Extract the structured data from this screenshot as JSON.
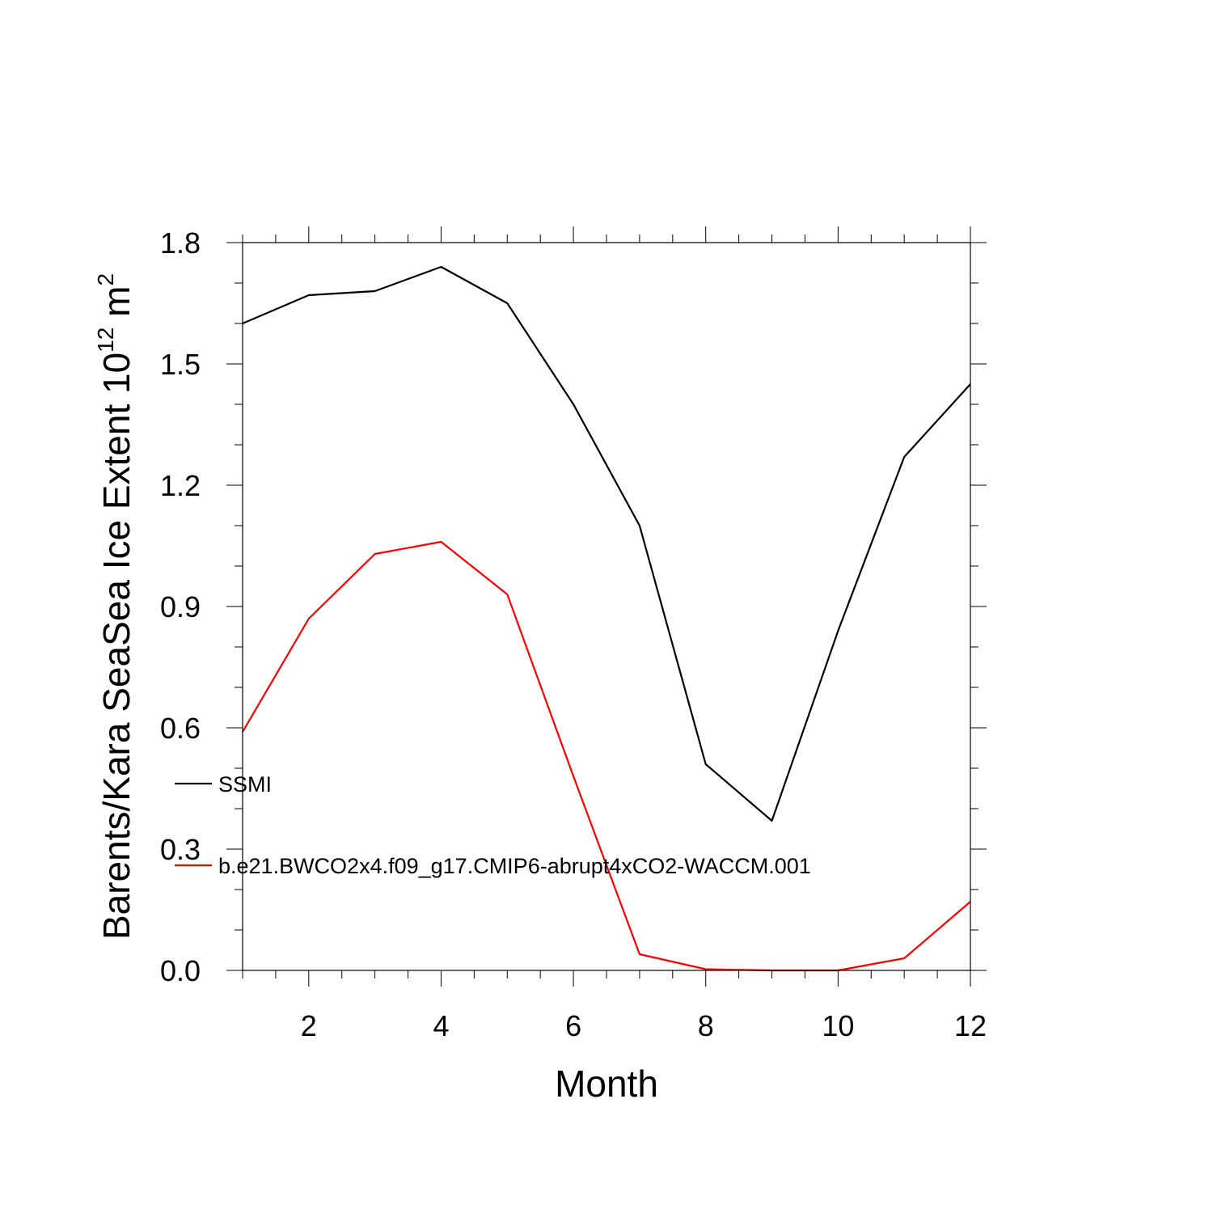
{
  "chart_data": {
    "type": "line",
    "title": "",
    "xlabel": "Month",
    "ylabel": "Barents/Kara SeaSea Ice Extent 10",
    "ylabel_sup": "12",
    "ylabel_unit": " m",
    "ylabel_unit_sup": "2",
    "xlim": [
      1,
      12
    ],
    "ylim": [
      0,
      1.8
    ],
    "x_ticks": [
      2,
      4,
      6,
      8,
      10,
      12
    ],
    "x_tick_labels": [
      "2",
      "4",
      "6",
      "8",
      "10",
      "12"
    ],
    "y_ticks": [
      0,
      0.3,
      0.6,
      0.9,
      1.2,
      1.5,
      1.8
    ],
    "y_tick_labels": [
      "0.0",
      "0.3",
      "0.6",
      "0.9",
      "1.2",
      "1.5",
      "1.8"
    ],
    "grid": false,
    "legend_position": "left, inside plot",
    "x": [
      1,
      2,
      3,
      4,
      5,
      6,
      7,
      8,
      9,
      10,
      11,
      12
    ],
    "series": [
      {
        "name": "SSMI",
        "color": "#000000",
        "values": [
          1.6,
          1.67,
          1.68,
          1.74,
          1.65,
          1.4,
          1.1,
          0.51,
          0.37,
          0.84,
          1.27,
          1.45
        ]
      },
      {
        "name": "b.e21.BWCO2x4.f09_g17.CMIP6-abrupt4xCO2-WACCM.001",
        "color": "#ff0000",
        "values": [
          0.59,
          0.87,
          1.03,
          1.06,
          0.93,
          0.48,
          0.04,
          0.003,
          0.0,
          0.0,
          0.03,
          0.17
        ]
      }
    ]
  }
}
